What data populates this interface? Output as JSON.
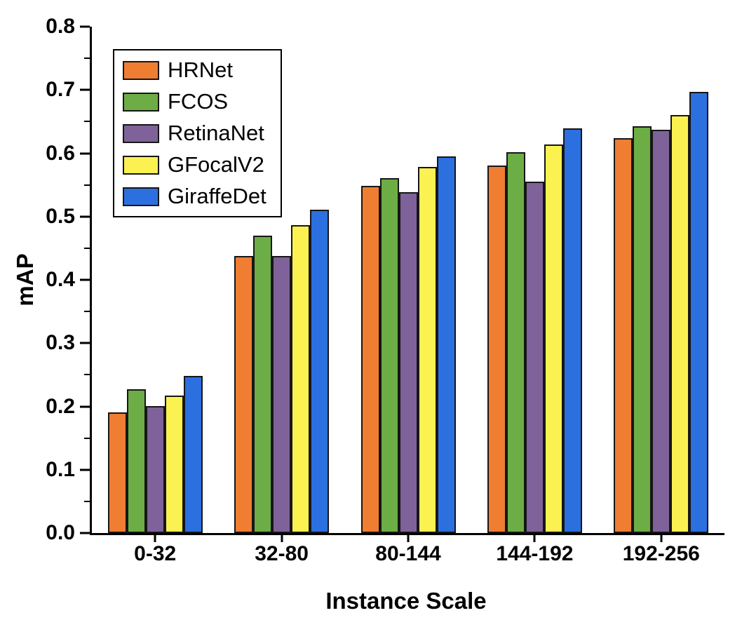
{
  "chart_data": {
    "type": "bar",
    "title": "",
    "xlabel": "Instance Scale",
    "ylabel": "mAP",
    "ylim": [
      0.0,
      0.8
    ],
    "ytick_step": 0.1,
    "ytick_minor_step": 0.05,
    "grid": false,
    "legend_position": "top-left",
    "categories": [
      "0-32",
      "32-80",
      "80-144",
      "144-192",
      "192-256"
    ],
    "series": [
      {
        "name": "HRNet",
        "color": "#EF7D32",
        "values": [
          0.191,
          0.438,
          0.548,
          0.581,
          0.624
        ]
      },
      {
        "name": "FCOS",
        "color": "#6CAE45",
        "values": [
          0.227,
          0.47,
          0.561,
          0.602,
          0.643
        ]
      },
      {
        "name": "RetinaNet",
        "color": "#7E6299",
        "values": [
          0.201,
          0.438,
          0.539,
          0.555,
          0.637
        ]
      },
      {
        "name": "GFocalV2",
        "color": "#FBF151",
        "values": [
          0.217,
          0.486,
          0.578,
          0.614,
          0.66
        ]
      },
      {
        "name": "GiraffeDet",
        "color": "#2C6FDF",
        "values": [
          0.248,
          0.511,
          0.595,
          0.639,
          0.697
        ]
      }
    ]
  }
}
